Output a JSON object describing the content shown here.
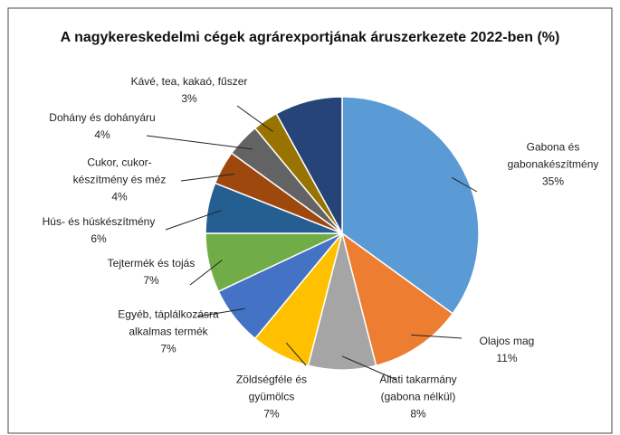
{
  "chart_data": {
    "type": "pie",
    "title": "A nagykereskedelmi cégek agrárexportjának áruszerkezete 2022-ben (%)",
    "categories": [
      "Gabona és\ngabonakészítmény",
      "Olajos mag",
      "Állati takarmány\n(gabona nélkül)",
      "Zöldségféle és\ngyümölcs",
      "Egyéb, táplálkozásra\nalkalmas termék",
      "Tejtermék és tojás",
      "Hús- és húskészítmény",
      "Cukor, cukor-\nkészítmény és méz",
      "Dohány és dohányáru",
      "Kávé, tea, kakaó, fűszer",
      null
    ],
    "values": [
      35,
      11,
      8,
      7,
      7,
      7,
      6,
      4,
      4,
      3,
      8
    ],
    "value_labels": [
      "35%",
      "11%",
      "8%",
      "7%",
      "7%",
      "7%",
      "6%",
      "4%",
      "4%",
      "3%",
      null
    ],
    "colors": [
      "#5b9bd5",
      "#ed7d31",
      "#a5a5a5",
      "#ffc000",
      "#4472c4",
      "#70ad47",
      "#255e91",
      "#9e480e",
      "#636363",
      "#997300",
      "#264478"
    ]
  }
}
